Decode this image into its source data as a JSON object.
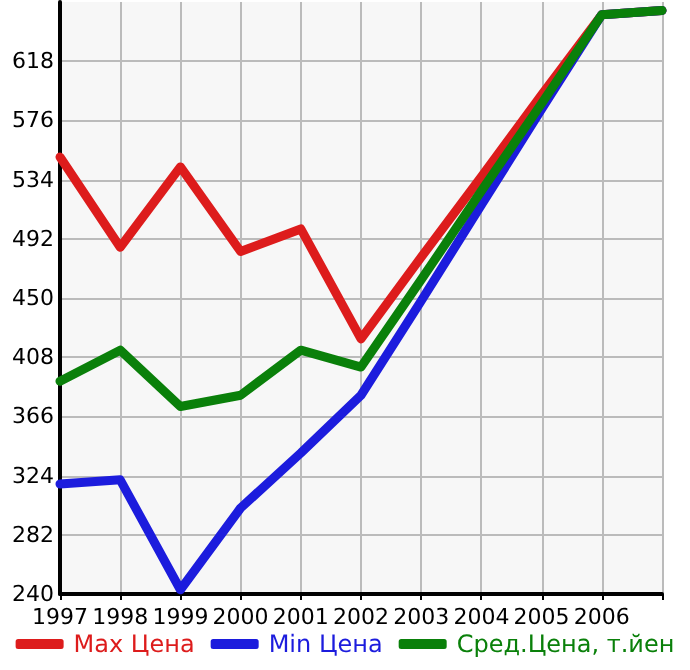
{
  "chart_data": {
    "type": "line",
    "x": [
      1997,
      1998,
      1999,
      2000,
      2001,
      2002,
      2003,
      2004,
      2005,
      2006,
      2007
    ],
    "xlim": [
      1997,
      2007
    ],
    "xticks": [
      1997,
      1998,
      1999,
      2000,
      2001,
      2002,
      2003,
      2004,
      2005,
      2006,
      {
        "value": 2007,
        "label": null
      }
    ],
    "ylim": [
      240,
      660
    ],
    "yticks": [
      240,
      282,
      324,
      366,
      408,
      450,
      492,
      534,
      576,
      618
    ],
    "grid": true,
    "legend": "bottom",
    "marker": "none",
    "line_style": "solid",
    "series": [
      {
        "name": "Max Цена",
        "color": "#dd1c1c",
        "values": [
          550,
          486,
          543,
          483,
          499,
          421,
          479,
          536,
          594,
          651,
          654
        ]
      },
      {
        "name": "Min Цена",
        "color": "#1c1cdd",
        "values": [
          318,
          321,
          243,
          301,
          340,
          381,
          448,
          516,
          584,
          651,
          654
        ]
      },
      {
        "name": "Сред.Цена, т.йен",
        "color": "#0a800a",
        "values": [
          391,
          413,
          373,
          381,
          413,
          401,
          463,
          526,
          588,
          651,
          654
        ]
      }
    ]
  }
}
